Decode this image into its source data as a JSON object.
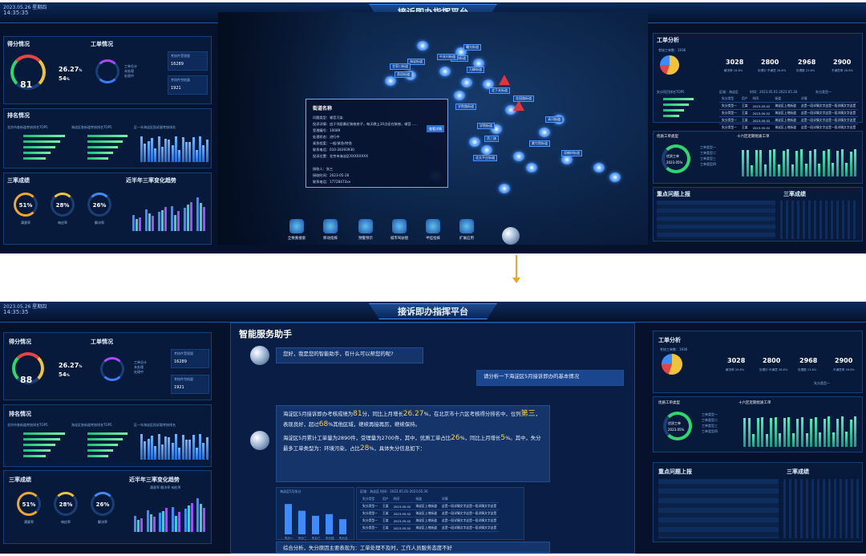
{
  "header": {
    "title": "接诉即办指挥平台",
    "date": "2023.05.26 星期四",
    "time": "14:35:35"
  },
  "left": {
    "score": {
      "title": "得分情况",
      "value_a": "81",
      "value_b": "88",
      "rate": "26.27",
      "rate_unit": "%",
      "rank": "54",
      "rank_unit": "%"
    },
    "orders": {
      "title": "工单情况",
      "legend": [
        "工单总计",
        "未处理",
        "处理中"
      ],
      "box1_label": "考核件受理量",
      "box1_value": "16289",
      "box2_label": "考核件完结量",
      "box2_value": "1921"
    },
    "ranking": {
      "title": "排名情况",
      "sub1": "北京市各街道考核排名TOP5",
      "sub2": "海淀区各街道考核排名TOP5",
      "sub3": "区一年海淀区投诉量考核排名"
    },
    "three": {
      "title": "三率成绩",
      "items": [
        {
          "value": "51%",
          "label": "满意率"
        },
        {
          "value": "28%",
          "label": "响应率"
        },
        {
          "value": "26%",
          "label": "解决率"
        }
      ]
    },
    "trend": {
      "title": "近半年三率变化趋势",
      "legend": [
        "满意率",
        "解决率",
        "响应率"
      ]
    }
  },
  "map": {
    "streets": [
      "曙光街道",
      "海淀街道",
      "羊坊街道",
      "万柳街道",
      "甘家口街道",
      "燕园街道",
      "清河街道",
      "西三旗",
      "双榆树街道",
      "花园路街道",
      "学院路街道",
      "学院街道",
      "中关村街道",
      "北下关街道",
      "紫竹院街道",
      "北太平庄街道"
    ],
    "popup": {
      "title": "街道名称",
      "rows": [
        [
          "问题类型：",
          "噪音污染"
        ],
        [
          "投诉详情：",
          "由于邻居最近装修房子，每天晚上10点还在装修，噪音……"
        ],
        [
          "受理编号：",
          "10089"
        ],
        [
          "处理状态：",
          "进行中"
        ],
        [
          "紧急程度：",
          "一般/紧急/特急"
        ],
        [
          "联系电话：",
          "010-28393930"
        ],
        [
          "投诉位置：",
          "北京市海淀区XXXXXXXX"
        ],
        [
          "接收人：",
          "张三"
        ],
        [
          "接收时间：",
          "2023-05-26"
        ],
        [
          "联系电话：",
          "17728473xx"
        ]
      ],
      "button": "查看详情"
    },
    "toolbar": [
      "全要素搜索",
      "移动指挥",
      "预警预示",
      "城市驾驶舱",
      "半挂指挥",
      "扩展应用"
    ]
  },
  "right": {
    "analysis": {
      "title": "工单分析",
      "sub": "考核工单数：1936",
      "stats": [
        {
          "value": "3028",
          "label": "件数"
        },
        {
          "value": "2800",
          "label": "件"
        },
        {
          "value": "2968",
          "label": "件"
        },
        {
          "value": "2900",
          "label": "件"
        }
      ],
      "stat_labels": [
        "解决率  26.8%",
        "处理中·不满意  26.8%",
        "处理数  23.6%",
        "不满意率  26.8%"
      ]
    },
    "top5": {
      "title": "失分项目排名TOP5",
      "area": "区域：海淀区",
      "period": "时间：2023.05.01-2023.05.30",
      "type": "失分类型一"
    },
    "table": {
      "headers": [
        "失分类型",
        "用户",
        "时间",
        "街道",
        "详情"
      ],
      "rows": [
        [
          "失分类型一",
          "王某",
          "2023.05.02",
          "海淀区上地街道",
          "这是一段详情文字这是一段详情文字这是"
        ],
        [
          "失分类型一",
          "王某",
          "2023.05.02",
          "海淀区上地街道",
          "这是一段详情文字这是一段详情文字这是"
        ],
        [
          "失分类型一",
          "王某",
          "2023.05.02",
          "海淀区上地街道",
          "这是一段详情文字这是一段详情文字这是"
        ],
        [
          "失分类型一",
          "王某",
          "2023.05.02",
          "海淀区上地街道",
          "这是一段详情文字这是一段详情文字这是"
        ]
      ]
    },
    "quality": {
      "title": "优质工单类型",
      "ring_label": "优质工单",
      "ring_value": "2023.05%",
      "legend": [
        "工单类型一",
        "工单类型二",
        "工单类型三",
        "工单类型四"
      ]
    },
    "six": {
      "title": "十六区近期优质工单"
    },
    "report": {
      "title": "重点问题上报"
    },
    "score3": {
      "title": "三率成绩"
    }
  },
  "assistant": {
    "title": "智能服务助手",
    "greeting": "您好，我是您的智能助手，有什么可以帮您的呢?",
    "question": "请分析一下海淀区5月接诉即办的基本情况",
    "answer_p1_a": "海淀区5月接诉即办考核成绩为",
    "answer_score": "81",
    "answer_p1_b": "分，同比上月增长",
    "answer_growth": "26.27",
    "answer_p1_c": "%，在北京市十六区考核得分排名中，位列",
    "answer_rank": "第三",
    "answer_p1_d": "，表现良好，超过",
    "answer_pct": "68",
    "answer_p1_e": "%其他区域，继续再接再厉，继续保持。",
    "answer_p2_a": "海淀区5月累计工单量为2890件，受理量为2700件，其中，优质工单占比",
    "answer_p2_b": "26",
    "answer_p2_c": "%，同比上月增长",
    "answer_p2_d": "5",
    "answer_p2_e": "%。其中，失分最多工单类型为：环境污染，占比",
    "answer_p2_f": "28",
    "answer_p2_g": "%，具体失分信息如下：",
    "mini_chart_title": "海淀区5月失分",
    "mini_period": "区域：海淀区    时间：2023.05.01-2023.05.30",
    "conclusion": "综合分析，失分原因主要表现为：工单处理不及时，工作人员服务态度不好"
  },
  "chart_data": [
    {
      "type": "bar",
      "title": "近半年三率变化趋势",
      "categories": [
        "1月",
        "2月",
        "3月",
        "4月",
        "5月",
        "6月"
      ],
      "series": [
        {
          "name": "满意率",
          "values": [
            40,
            55,
            48,
            62,
            58,
            85
          ]
        },
        {
          "name": "解决率",
          "values": [
            30,
            45,
            52,
            40,
            66,
            70
          ]
        },
        {
          "name": "响应率",
          "values": [
            35,
            38,
            60,
            50,
            72,
            60
          ]
        }
      ],
      "ylim": [
        0,
        100
      ]
    },
    {
      "type": "bar",
      "title": "海淀区5月失分",
      "categories": [
        "失分一",
        "失分二",
        "失分三",
        "失分四",
        "失分五"
      ],
      "values": [
        90,
        70,
        55,
        60,
        45
      ],
      "ylim": [
        0,
        100
      ]
    }
  ]
}
